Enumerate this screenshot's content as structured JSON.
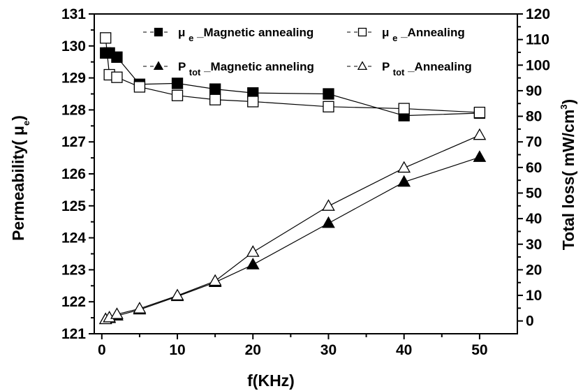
{
  "chart_data": {
    "type": "line",
    "xlabel": "f(KHz)",
    "ylabel_left": {
      "main": "Permeability( μ",
      "sub": "e",
      "end": ")"
    },
    "ylabel_right": {
      "main": "Total loss( mW/cm",
      "sup": "3",
      "end": ")"
    },
    "xlim": [
      -1,
      55
    ],
    "ylim_left": [
      121,
      131
    ],
    "ylim_right": [
      -5,
      120
    ],
    "x_ticks": [
      0,
      10,
      20,
      30,
      40,
      50
    ],
    "y_left_ticks": [
      121,
      122,
      123,
      124,
      125,
      126,
      127,
      128,
      129,
      130,
      131
    ],
    "y_right_ticks": [
      0,
      10,
      20,
      30,
      40,
      50,
      60,
      70,
      80,
      90,
      100,
      110,
      120
    ],
    "legend_position": "top",
    "series": [
      {
        "name": "μ e _Magnetic annealing",
        "legend": {
          "main": "μ",
          "sub": "e",
          "rest": "_Magnetic annealing"
        },
        "axis": "left",
        "marker": "square",
        "filled": true,
        "x": [
          0.5,
          1,
          2,
          5,
          10,
          15,
          20,
          30,
          40,
          50
        ],
        "y": [
          129.78,
          129.78,
          129.65,
          128.8,
          128.83,
          128.65,
          128.53,
          128.5,
          127.82,
          127.9
        ]
      },
      {
        "name": "μ e _Annealing",
        "legend": {
          "main": "μ",
          "sub": "e",
          "rest": "_Annealing"
        },
        "axis": "left",
        "marker": "square",
        "filled": false,
        "x": [
          0.5,
          1,
          2,
          5,
          10,
          15,
          20,
          30,
          40,
          50
        ],
        "y": [
          130.25,
          129.1,
          129.02,
          128.72,
          128.45,
          128.32,
          128.26,
          128.1,
          128.04,
          127.92
        ]
      },
      {
        "name": "P tot _Magnetic anneling",
        "legend": {
          "main": "P",
          "sub": "tot",
          "rest": "_Magnetic anneling"
        },
        "axis": "right",
        "marker": "triangle",
        "filled": true,
        "x": [
          0.5,
          1,
          2,
          5,
          10,
          15,
          20,
          30,
          40,
          50
        ],
        "y": [
          0.6,
          1.0,
          2.0,
          4.4,
          9.6,
          15.1,
          22.0,
          38.2,
          54.3,
          64.0
        ]
      },
      {
        "name": "P tot _Annealing",
        "legend": {
          "main": "P",
          "sub": "tot",
          "rest": "_Annealing"
        },
        "axis": "right",
        "marker": "triangle",
        "filled": false,
        "x": [
          0.5,
          1,
          2,
          5,
          10,
          15,
          20,
          30,
          40,
          50
        ],
        "y": [
          0.6,
          1.3,
          2.6,
          4.8,
          9.9,
          15.6,
          26.9,
          44.9,
          59.8,
          72.6
        ]
      }
    ]
  }
}
